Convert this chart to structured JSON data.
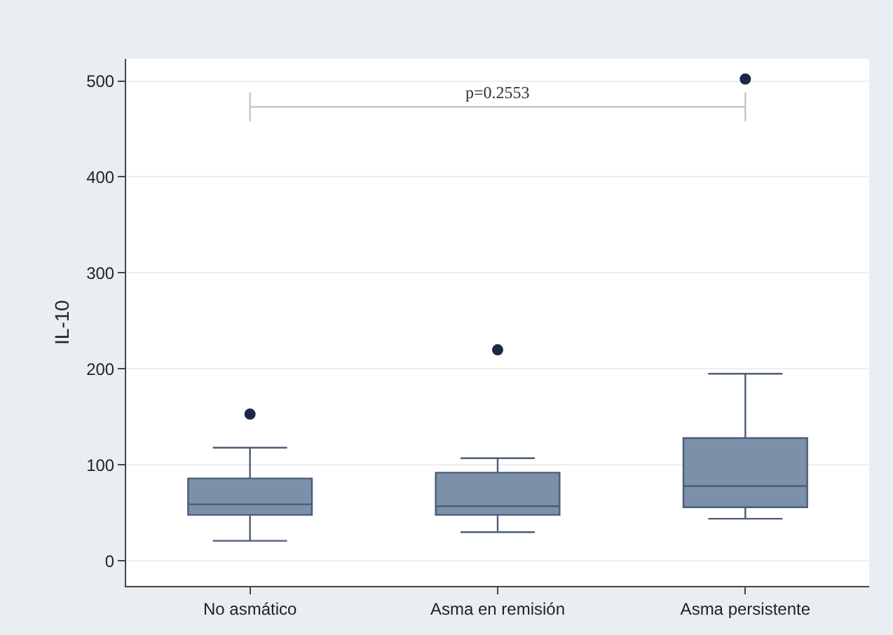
{
  "chart_data": {
    "type": "box",
    "ylabel": "IL-10",
    "categories": [
      "No asmático",
      "Asma en remisión",
      "Asma persistente"
    ],
    "boxes": [
      {
        "low": 21,
        "q1": 48,
        "median": 59,
        "q3": 86,
        "high": 118,
        "outliers": [
          153
        ]
      },
      {
        "low": 30,
        "q1": 48,
        "median": 57,
        "q3": 92,
        "high": 107,
        "outliers": [
          220
        ]
      },
      {
        "low": 44,
        "q1": 56,
        "median": 78,
        "q3": 128,
        "high": 195,
        "outliers": [
          502
        ]
      }
    ],
    "color": "#7d90a9",
    "ylim": [
      -26,
      523
    ],
    "yticks": [
      0,
      100,
      200,
      300,
      400,
      500
    ],
    "grid": "y",
    "annotations": [
      "p=0.2553"
    ]
  }
}
